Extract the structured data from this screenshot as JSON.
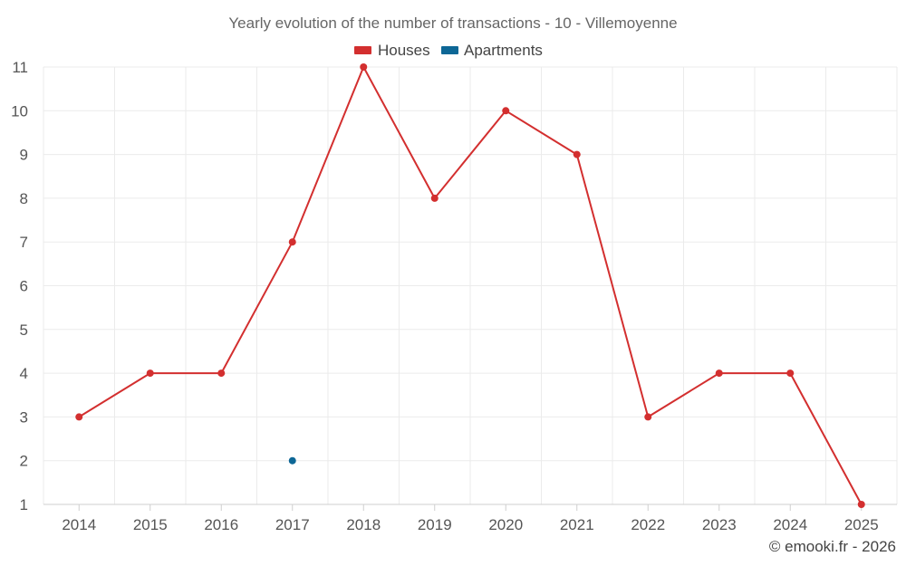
{
  "chart_data": {
    "type": "line",
    "title": "Yearly evolution of the number of transactions - 10 - Villemoyenne",
    "categories": [
      "2014",
      "2015",
      "2016",
      "2017",
      "2018",
      "2019",
      "2020",
      "2021",
      "2022",
      "2023",
      "2024",
      "2025"
    ],
    "ylim": [
      1,
      11
    ],
    "yticks": [
      1,
      2,
      3,
      4,
      5,
      6,
      7,
      8,
      9,
      10,
      11
    ],
    "grid": true,
    "legend_position": "top-center",
    "series": [
      {
        "name": "Houses",
        "color": "#d32f2f",
        "values": [
          3,
          4,
          4,
          7,
          11,
          8,
          10,
          9,
          3,
          4,
          4,
          1
        ]
      },
      {
        "name": "Apartments",
        "color": "#0d6796",
        "values": [
          null,
          null,
          null,
          2,
          null,
          null,
          null,
          null,
          null,
          null,
          null,
          null
        ]
      }
    ]
  },
  "credit": "© emooki.fr - 2026"
}
